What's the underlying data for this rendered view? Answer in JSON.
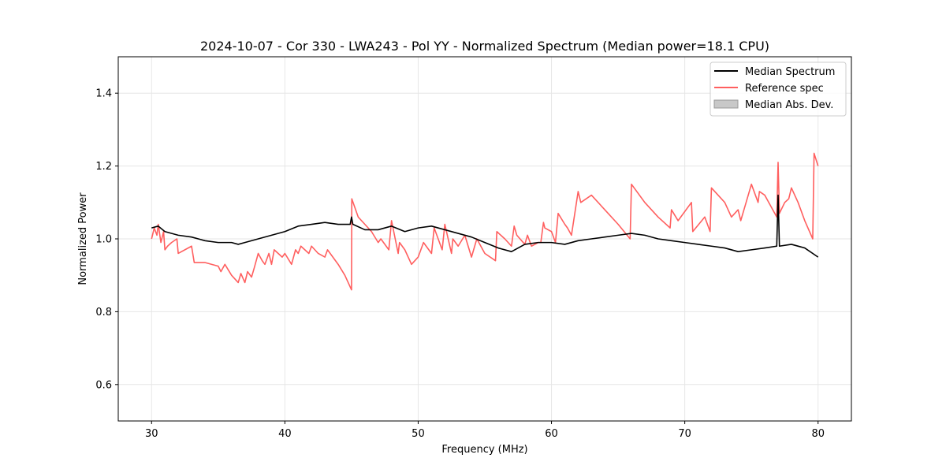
{
  "chart_data": {
    "type": "line",
    "title": "2024-10-07 - Cor 330 - LWA243 - Pol YY - Normalized Spectrum (Median power=18.1 CPU)",
    "xlabel": "Frequency (MHz)",
    "ylabel": "Normalized Power",
    "xlim": [
      27.5,
      82.5
    ],
    "ylim": [
      0.5,
      1.5
    ],
    "xticks": [
      30,
      40,
      50,
      60,
      70,
      80
    ],
    "yticks": [
      0.6,
      0.8,
      1.0,
      1.2,
      1.4
    ],
    "xtick_labels": [
      "30",
      "40",
      "50",
      "60",
      "70",
      "80"
    ],
    "ytick_labels": [
      "0.6",
      "0.8",
      "1.0",
      "1.2",
      "1.4"
    ],
    "grid": true,
    "legend_position": "top-right",
    "colors": {
      "median": "#000000",
      "reference": "#ff5f5f",
      "mad_fill": "#c8c8c8",
      "grid": "#e6e6e6"
    },
    "series": [
      {
        "name": "Median Spectrum",
        "color": "#000000",
        "x": [
          30.0,
          30.5,
          31.0,
          32.0,
          33.0,
          34.0,
          35.0,
          36.0,
          36.5,
          37.0,
          38.0,
          39.0,
          40.0,
          41.0,
          42.0,
          43.0,
          44.0,
          44.9,
          45.0,
          45.1,
          46.0,
          47.0,
          48.0,
          49.0,
          50.0,
          51.0,
          52.0,
          53.0,
          54.0,
          55.0,
          56.0,
          57.0,
          58.0,
          59.0,
          60.0,
          61.0,
          62.0,
          63.0,
          64.0,
          65.0,
          66.0,
          67.0,
          68.0,
          69.0,
          70.0,
          71.0,
          72.0,
          73.0,
          74.0,
          75.0,
          76.0,
          76.9,
          77.0,
          77.1,
          78.0,
          79.0,
          80.0
        ],
        "y": [
          1.03,
          1.035,
          1.02,
          1.01,
          1.005,
          0.995,
          0.99,
          0.99,
          0.985,
          0.99,
          1.0,
          1.01,
          1.02,
          1.035,
          1.04,
          1.045,
          1.04,
          1.04,
          1.06,
          1.04,
          1.025,
          1.025,
          1.035,
          1.02,
          1.03,
          1.035,
          1.025,
          1.015,
          1.005,
          0.99,
          0.975,
          0.965,
          0.985,
          0.99,
          0.99,
          0.985,
          0.995,
          1.0,
          1.005,
          1.01,
          1.015,
          1.01,
          1.0,
          0.995,
          0.99,
          0.985,
          0.98,
          0.975,
          0.965,
          0.97,
          0.975,
          0.98,
          1.12,
          0.98,
          0.985,
          0.975,
          0.95
        ]
      },
      {
        "name": "Reference spec",
        "color": "#ff5f5f",
        "x": [
          30.0,
          30.2,
          30.4,
          30.5,
          30.7,
          30.9,
          31.0,
          31.2,
          31.5,
          31.9,
          32.0,
          33.0,
          33.2,
          34.0,
          35.0,
          35.2,
          35.5,
          36.0,
          36.5,
          36.7,
          37.0,
          37.2,
          37.5,
          37.7,
          38.0,
          38.3,
          38.5,
          38.8,
          39.0,
          39.2,
          39.8,
          40.0,
          40.5,
          40.8,
          41.0,
          41.2,
          41.8,
          42.0,
          42.5,
          43.0,
          43.2,
          44.0,
          44.5,
          45.0,
          45.02,
          45.5,
          46.0,
          46.5,
          47.0,
          47.2,
          47.8,
          48.0,
          48.5,
          48.6,
          49.0,
          49.5,
          50.0,
          50.4,
          51.0,
          51.2,
          51.8,
          52.0,
          52.5,
          52.6,
          53.0,
          53.5,
          54.0,
          54.4,
          55.0,
          55.8,
          55.9,
          56.5,
          57.0,
          57.2,
          57.4,
          58.0,
          58.2,
          58.5,
          59.0,
          59.2,
          59.4,
          59.5,
          60.0,
          60.3,
          60.5,
          61.0,
          61.2,
          61.5,
          62.0,
          62.2,
          63.0,
          64.0,
          65.0,
          65.9,
          66.0,
          67.0,
          68.0,
          68.9,
          69.0,
          69.5,
          70.5,
          70.6,
          71.5,
          71.9,
          72.0,
          73.0,
          73.5,
          74.0,
          74.2,
          74.6,
          75.0,
          75.5,
          75.6,
          76.0,
          76.9,
          77.0,
          77.1,
          77.5,
          77.8,
          78.0,
          78.5,
          79.0,
          79.6,
          79.7,
          80.0
        ],
        "y": [
          1.0,
          1.03,
          1.01,
          1.04,
          0.99,
          1.02,
          0.97,
          0.98,
          0.99,
          1.0,
          0.96,
          0.98,
          0.935,
          0.935,
          0.925,
          0.91,
          0.93,
          0.9,
          0.88,
          0.905,
          0.88,
          0.91,
          0.895,
          0.92,
          0.96,
          0.94,
          0.93,
          0.96,
          0.93,
          0.97,
          0.95,
          0.96,
          0.93,
          0.97,
          0.96,
          0.98,
          0.96,
          0.98,
          0.96,
          0.95,
          0.97,
          0.93,
          0.9,
          0.86,
          1.11,
          1.06,
          1.04,
          1.02,
          0.99,
          1.0,
          0.97,
          1.05,
          0.96,
          0.99,
          0.97,
          0.93,
          0.95,
          0.99,
          0.96,
          1.03,
          0.97,
          1.04,
          0.96,
          1.0,
          0.98,
          1.01,
          0.95,
          1.0,
          0.96,
          0.94,
          1.02,
          1.0,
          0.98,
          1.035,
          1.01,
          0.985,
          1.01,
          0.98,
          0.99,
          0.99,
          1.045,
          1.03,
          1.02,
          0.99,
          1.07,
          1.04,
          1.03,
          1.01,
          1.13,
          1.1,
          1.12,
          1.08,
          1.04,
          1.0,
          1.15,
          1.1,
          1.06,
          1.03,
          1.08,
          1.05,
          1.1,
          1.02,
          1.06,
          1.02,
          1.14,
          1.1,
          1.06,
          1.08,
          1.05,
          1.1,
          1.15,
          1.1,
          1.13,
          1.12,
          1.06,
          1.21,
          1.07,
          1.1,
          1.11,
          1.14,
          1.1,
          1.05,
          1.0,
          1.235,
          1.2
        ]
      }
    ],
    "legend": [
      {
        "label": "Median Spectrum",
        "kind": "line",
        "color": "#000000"
      },
      {
        "label": "Reference spec",
        "kind": "line",
        "color": "#ff5f5f"
      },
      {
        "label": "Median Abs. Dev.",
        "kind": "patch",
        "color": "#c8c8c8"
      }
    ]
  }
}
